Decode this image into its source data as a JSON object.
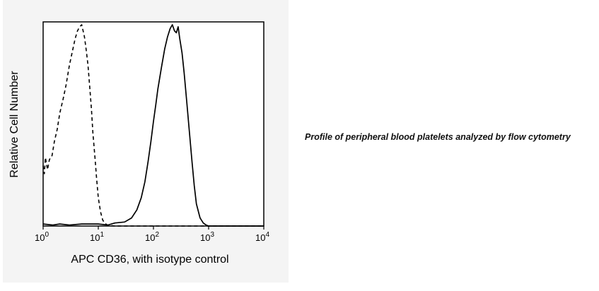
{
  "caption": "Profile of peripheral blood platelets analyzed by flow cytometry",
  "chart_data": {
    "type": "line",
    "title": "",
    "xlabel": "APC CD36, with isotype control",
    "ylabel": "Relative Cell Number",
    "x_scale": "log",
    "xlim": [
      1,
      10000
    ],
    "ylim": [
      0,
      100
    ],
    "x_ticks": [
      {
        "base": "10",
        "exp": "0",
        "value": 1
      },
      {
        "base": "10",
        "exp": "1",
        "value": 10
      },
      {
        "base": "10",
        "exp": "2",
        "value": 100
      },
      {
        "base": "10",
        "exp": "3",
        "value": 1000
      },
      {
        "base": "10",
        "exp": "4",
        "value": 10000
      }
    ],
    "grid": false,
    "legend": false,
    "series": [
      {
        "style": "dashed",
        "color": "#000000",
        "x": [
          1.0,
          1.05,
          1.1,
          1.2,
          1.3,
          1.45,
          1.6,
          1.8,
          2.0,
          2.3,
          2.6,
          3.0,
          3.4,
          3.8,
          4.2,
          4.6,
          5.0,
          5.3,
          5.6,
          6.0,
          6.5,
          7.0,
          7.5,
          8.0,
          8.7,
          9.3,
          10,
          11,
          12,
          13,
          14,
          15,
          16,
          18,
          20,
          25,
          35,
          50,
          100,
          1000,
          10000
        ],
        "y": [
          30,
          26,
          34,
          28,
          33,
          35,
          42,
          48,
          56,
          63,
          70,
          80,
          87,
          93,
          97,
          99,
          100,
          97,
          94,
          88,
          80,
          69,
          58,
          46,
          34,
          24,
          14,
          7,
          3,
          1.5,
          0.8,
          0.4,
          0.2,
          0.1,
          0,
          0,
          0,
          0,
          0,
          0,
          0
        ]
      },
      {
        "style": "solid",
        "color": "#000000",
        "x": [
          1.0,
          1.5,
          2,
          3,
          5,
          10,
          15,
          20,
          30,
          40,
          50,
          60,
          70,
          80,
          90,
          100,
          110,
          120,
          140,
          160,
          180,
          200,
          220,
          240,
          260,
          280,
          300,
          330,
          360,
          400,
          450,
          500,
          550,
          600,
          700,
          800,
          900,
          1000,
          1200,
          10000
        ],
        "y": [
          1,
          0.5,
          1,
          0.5,
          1,
          1,
          0.5,
          1.5,
          2,
          4,
          8,
          14,
          22,
          32,
          42,
          52,
          60,
          68,
          79,
          88,
          94,
          98,
          100,
          97,
          96,
          99,
          93,
          86,
          76,
          62,
          46,
          32,
          20,
          11,
          4,
          1.5,
          0.5,
          0,
          0,
          0
        ]
      }
    ]
  }
}
